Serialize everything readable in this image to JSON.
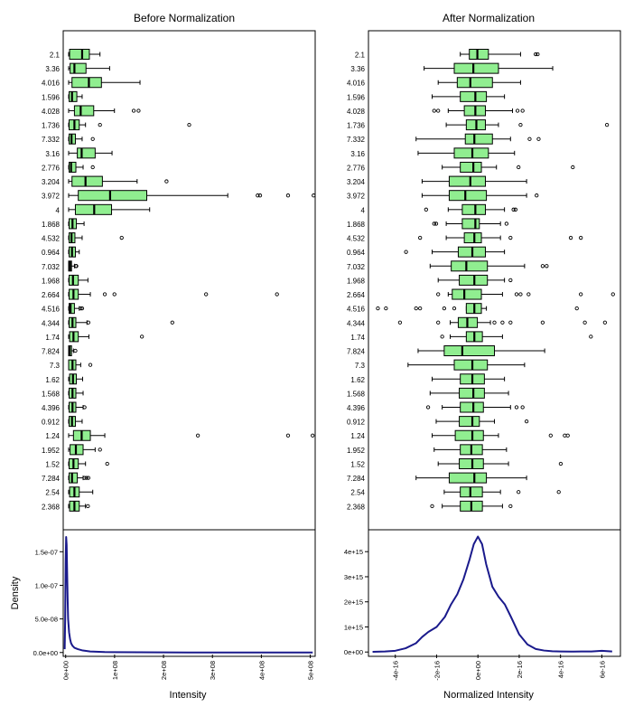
{
  "colors": {
    "box_fill": "#90ee90",
    "box_stroke": "#000000",
    "density_line": "#1a1a8c",
    "frame": "#000000",
    "label": "#000000"
  },
  "chart_data": [
    {
      "type": "boxplot",
      "title": "Before Normalization",
      "xlabel": "",
      "ylabel": "",
      "xlim": [
        0,
        500000000
      ],
      "categories": [
        "2.1",
        "3.36",
        "4.016",
        "1.596",
        "4.028",
        "1.736",
        "7.332",
        "3.16",
        "2.776",
        "3.204",
        "3.972",
        "4",
        "1.868",
        "4.532",
        "0.964",
        "7.032",
        "1.968",
        "2.664",
        "4.516",
        "4.344",
        "1.74",
        "7.824",
        "7.3",
        "1.62",
        "1.568",
        "4.396",
        "0.912",
        "1.24",
        "1.952",
        "1.52",
        "7.284",
        "2.54",
        "2.368"
      ],
      "boxes": [
        {
          "wlo": 0,
          "q1": 2000000,
          "med": 28000000,
          "q3": 43000000,
          "whi": 65000000,
          "outliers": []
        },
        {
          "wlo": 0,
          "q1": 3000000,
          "med": 12000000,
          "q3": 36000000,
          "whi": 85000000,
          "outliers": []
        },
        {
          "wlo": 0,
          "q1": 7000000,
          "med": 42000000,
          "q3": 68000000,
          "whi": 148000000,
          "outliers": []
        },
        {
          "wlo": 0,
          "q1": 1000000,
          "med": 7000000,
          "q3": 17000000,
          "whi": 28000000,
          "outliers": []
        },
        {
          "wlo": 0,
          "q1": 12000000,
          "med": 25000000,
          "q3": 52000000,
          "whi": 95000000,
          "outliers": [
            135000000,
            145000000
          ]
        },
        {
          "wlo": 0,
          "q1": 1000000,
          "med": 12000000,
          "q3": 22000000,
          "whi": 35000000,
          "outliers": [
            65000000,
            250000000
          ]
        },
        {
          "wlo": 0,
          "q1": 1000000,
          "med": 6000000,
          "q3": 14000000,
          "whi": 28000000,
          "outliers": [
            50000000
          ]
        },
        {
          "wlo": 0,
          "q1": 18000000,
          "med": 27000000,
          "q3": 55000000,
          "whi": 90000000,
          "outliers": []
        },
        {
          "wlo": 0,
          "q1": 1000000,
          "med": 5000000,
          "q3": 15000000,
          "whi": 30000000,
          "outliers": [
            50000000
          ]
        },
        {
          "wlo": 0,
          "q1": 7000000,
          "med": 35000000,
          "q3": 70000000,
          "whi": 142000000,
          "outliers": [
            203000000
          ]
        },
        {
          "wlo": 0,
          "q1": 20000000,
          "med": 86000000,
          "q3": 162000000,
          "whi": 330000000,
          "outliers": [
            392000000,
            397000000,
            455000000,
            508000000
          ]
        },
        {
          "wlo": 0,
          "q1": 14000000,
          "med": 53000000,
          "q3": 89000000,
          "whi": 168000000,
          "outliers": []
        },
        {
          "wlo": 0,
          "q1": 1000000,
          "med": 8000000,
          "q3": 16000000,
          "whi": 32000000,
          "outliers": []
        },
        {
          "wlo": 0,
          "q1": 1000000,
          "med": 6000000,
          "q3": 13000000,
          "whi": 28000000,
          "outliers": [
            110000000
          ]
        },
        {
          "wlo": 0,
          "q1": 1000000,
          "med": 7000000,
          "q3": 14000000,
          "whi": 22000000,
          "outliers": []
        },
        {
          "wlo": 0,
          "q1": 0,
          "med": 3000000,
          "q3": 6000000,
          "whi": 12000000,
          "outliers": [
            15000000,
            16000000
          ]
        },
        {
          "wlo": 0,
          "q1": 1000000,
          "med": 9000000,
          "q3": 20000000,
          "whi": 40000000,
          "outliers": []
        },
        {
          "wlo": 0,
          "q1": 1000000,
          "med": 10000000,
          "q3": 20000000,
          "whi": 45000000,
          "outliers": [
            75000000,
            95000000,
            285000000,
            432000000
          ]
        },
        {
          "wlo": 0,
          "q1": 1000000,
          "med": 4000000,
          "q3": 12000000,
          "whi": 22000000,
          "outliers": [
            25000000,
            28000000
          ]
        },
        {
          "wlo": 0,
          "q1": 1000000,
          "med": 8000000,
          "q3": 15000000,
          "whi": 38000000,
          "outliers": [
            41000000,
            215000000
          ]
        },
        {
          "wlo": 0,
          "q1": 2000000,
          "med": 10000000,
          "q3": 20000000,
          "whi": 42000000,
          "outliers": [
            152000000
          ]
        },
        {
          "wlo": 0,
          "q1": 0,
          "med": 2000000,
          "q3": 6000000,
          "whi": 10000000,
          "outliers": [
            14000000
          ]
        },
        {
          "wlo": 0,
          "q1": 0,
          "med": 8000000,
          "q3": 15000000,
          "whi": 25000000,
          "outliers": [
            45000000
          ]
        },
        {
          "wlo": 0,
          "q1": 2000000,
          "med": 9000000,
          "q3": 16000000,
          "whi": 29000000,
          "outliers": []
        },
        {
          "wlo": 0,
          "q1": 1000000,
          "med": 8000000,
          "q3": 15000000,
          "whi": 30000000,
          "outliers": []
        },
        {
          "wlo": 0,
          "q1": 1000000,
          "med": 8000000,
          "q3": 15000000,
          "whi": 30000000,
          "outliers": [
            33000000
          ]
        },
        {
          "wlo": 0,
          "q1": 1000000,
          "med": 7000000,
          "q3": 14000000,
          "whi": 28000000,
          "outliers": []
        },
        {
          "wlo": 0,
          "q1": 10000000,
          "med": 27000000,
          "q3": 45000000,
          "whi": 75000000,
          "outliers": [
            268000000,
            455000000,
            506000000
          ]
        },
        {
          "wlo": 0,
          "q1": 3000000,
          "med": 15000000,
          "q3": 30000000,
          "whi": 55000000,
          "outliers": [
            65000000
          ]
        },
        {
          "wlo": 0,
          "q1": 1000000,
          "med": 10000000,
          "q3": 20000000,
          "whi": 35000000,
          "outliers": [
            80000000
          ]
        },
        {
          "wlo": 0,
          "q1": 1000000,
          "med": 7000000,
          "q3": 18000000,
          "whi": 30000000,
          "outliers": [
            33000000,
            37000000,
            41000000
          ]
        },
        {
          "wlo": 0,
          "q1": 2000000,
          "med": 12000000,
          "q3": 22000000,
          "whi": 50000000,
          "outliers": []
        },
        {
          "wlo": 0,
          "q1": 2000000,
          "med": 12000000,
          "q3": 22000000,
          "whi": 35000000,
          "outliers": [
            40000000
          ]
        }
      ]
    },
    {
      "type": "boxplot",
      "title": "After Normalization",
      "xlabel": "",
      "ylabel": "",
      "xlim": [
        -5.2e-16,
        6.8e-16
      ],
      "categories": [
        "2.1",
        "3.36",
        "4.016",
        "1.596",
        "4.028",
        "1.736",
        "7.332",
        "3.16",
        "2.776",
        "3.204",
        "3.972",
        "4",
        "1.868",
        "4.532",
        "0.964",
        "7.032",
        "1.968",
        "2.664",
        "4.516",
        "4.344",
        "1.74",
        "7.824",
        "7.3",
        "1.62",
        "1.568",
        "4.396",
        "0.912",
        "1.24",
        "1.952",
        "1.52",
        "7.284",
        "2.54",
        "2.368"
      ],
      "boxes": [
        {
          "wlo": -9e-17,
          "q1": -4.5e-17,
          "med": -5e-18,
          "q3": 5e-17,
          "whi": 2.1e-16,
          "outliers": [
            2.85e-16,
            2.95e-16
          ]
        },
        {
          "wlo": -2.7e-16,
          "q1": -1.2e-16,
          "med": -2.5e-17,
          "q3": 1e-16,
          "whi": 3.7e-16,
          "outliers": []
        },
        {
          "wlo": -2e-16,
          "q1": -1.05e-16,
          "med": -4e-17,
          "q3": 7e-17,
          "whi": 2.1e-16,
          "outliers": []
        },
        {
          "wlo": -2.3e-16,
          "q1": -9e-17,
          "med": -1.5e-17,
          "q3": 4e-17,
          "whi": 1.3e-16,
          "outliers": []
        },
        {
          "wlo": -1.5e-16,
          "q1": -7e-17,
          "med": -1.5e-17,
          "q3": 3.5e-17,
          "whi": 1.7e-16,
          "outliers": [
            -2.2e-16,
            -2e-16,
            1.95e-16,
            2.2e-16
          ]
        },
        {
          "wlo": -1.6e-16,
          "q1": -6e-17,
          "med": -1e-17,
          "q3": 3.5e-17,
          "whi": 1e-16,
          "outliers": [
            2.1e-16,
            6.4e-16
          ]
        },
        {
          "wlo": -3.1e-16,
          "q1": -6.5e-17,
          "med": -2e-17,
          "q3": 7e-17,
          "whi": 1.6e-16,
          "outliers": [
            2.55e-16,
            3e-16
          ]
        },
        {
          "wlo": -3e-16,
          "q1": -1.2e-16,
          "med": -3e-17,
          "q3": 5e-17,
          "whi": 1.8e-16,
          "outliers": []
        },
        {
          "wlo": -1.8e-16,
          "q1": -9e-17,
          "med": -2.5e-17,
          "q3": 1.5e-17,
          "whi": 9e-17,
          "outliers": [
            2e-16,
            4.7e-16
          ]
        },
        {
          "wlo": -2.8e-16,
          "q1": -1.45e-16,
          "med": -4e-17,
          "q3": 3.5e-17,
          "whi": 2.4e-16,
          "outliers": []
        },
        {
          "wlo": -2.8e-16,
          "q1": -1.45e-16,
          "med": -6.5e-17,
          "q3": 4e-17,
          "whi": 2.4e-16,
          "outliers": [
            2.9e-16
          ]
        },
        {
          "wlo": -1.5e-16,
          "q1": -8e-17,
          "med": -1.5e-17,
          "q3": 3.5e-17,
          "whi": 1.3e-16,
          "outliers": [
            -2.6e-16,
            1.75e-16,
            1.85e-16
          ]
        },
        {
          "wlo": -1.6e-16,
          "q1": -8e-17,
          "med": -1.5e-17,
          "q3": 5e-18,
          "whi": 1.1e-16,
          "outliers": [
            -2.2e-16,
            -2.1e-16,
            1.4e-16
          ]
        },
        {
          "wlo": -1.6e-16,
          "q1": -7e-17,
          "med": -2e-17,
          "q3": 1.5e-17,
          "whi": 1.1e-16,
          "outliers": [
            -2.9e-16,
            1.6e-16,
            4.6e-16,
            5.1e-16
          ]
        },
        {
          "wlo": -2.3e-16,
          "q1": -1e-16,
          "med": -3e-17,
          "q3": 3.5e-17,
          "whi": 1.3e-16,
          "outliers": [
            -3.6e-16
          ]
        },
        {
          "wlo": -2.4e-16,
          "q1": -1.35e-16,
          "med": -6e-17,
          "q3": 4.5e-17,
          "whi": 2.3e-16,
          "outliers": [
            3.2e-16,
            3.4e-16
          ]
        },
        {
          "wlo": -2e-16,
          "q1": -9.5e-17,
          "med": -2e-17,
          "q3": 4.5e-17,
          "whi": 1.3e-16,
          "outliers": [
            1.6e-16
          ]
        },
        {
          "wlo": -1.5e-16,
          "q1": -1.3e-16,
          "med": -7e-17,
          "q3": 1.5e-17,
          "whi": 1.2e-16,
          "outliers": [
            -2e-16,
            1.9e-16,
            2.1e-16,
            2.5e-16,
            5.1e-16,
            6.7e-16
          ]
        },
        {
          "wlo": -6e-17,
          "q1": -6e-17,
          "med": -2e-17,
          "q3": 1.5e-17,
          "whi": 4e-17,
          "outliers": [
            -5e-16,
            -4.6e-16,
            -3.1e-16,
            -2.9e-16,
            -1.7e-16,
            -1.2e-16,
            4.9e-16
          ]
        },
        {
          "wlo": -1.4e-16,
          "q1": -1e-16,
          "med": -5.5e-17,
          "q3": -5e-18,
          "whi": 6e-17,
          "outliers": [
            -3.9e-16,
            -2e-16,
            8e-17,
            1.2e-16,
            1.6e-16,
            3.2e-16,
            5.3e-16,
            6.3e-16
          ]
        },
        {
          "wlo": -1.4e-16,
          "q1": -6e-17,
          "med": -2e-17,
          "q3": 2e-17,
          "whi": 1.2e-16,
          "outliers": [
            -1.8e-16,
            5.6e-16
          ]
        },
        {
          "wlo": -3e-16,
          "q1": -1.7e-16,
          "med": -8e-17,
          "q3": 8e-17,
          "whi": 3.3e-16,
          "outliers": []
        },
        {
          "wlo": -3.5e-16,
          "q1": -1.2e-16,
          "med": -3e-17,
          "q3": 4.5e-17,
          "whi": 2.3e-16,
          "outliers": []
        },
        {
          "wlo": -2.3e-16,
          "q1": -9e-17,
          "med": -3e-17,
          "q3": 3e-17,
          "whi": 1.3e-16,
          "outliers": []
        },
        {
          "wlo": -2.4e-16,
          "q1": -9.5e-17,
          "med": -2.5e-17,
          "q3": 3e-17,
          "whi": 1.5e-16,
          "outliers": []
        },
        {
          "wlo": -1.8e-16,
          "q1": -9e-17,
          "med": -2.5e-17,
          "q3": 2.5e-17,
          "whi": 1.6e-16,
          "outliers": [
            -2.5e-16,
            1.9e-16,
            2.2e-16
          ]
        },
        {
          "wlo": -2.1e-16,
          "q1": -9.5e-17,
          "med": -3e-17,
          "q3": 5e-18,
          "whi": 8e-17,
          "outliers": [
            2.4e-16
          ]
        },
        {
          "wlo": -2.3e-16,
          "q1": -1.15e-16,
          "med": -3e-17,
          "q3": 2.5e-17,
          "whi": 1e-16,
          "outliers": [
            3.6e-16,
            4.3e-16,
            4.45e-16
          ]
        },
        {
          "wlo": -2.2e-16,
          "q1": -9e-17,
          "med": -3.5e-17,
          "q3": 2e-17,
          "whi": 1.4e-16,
          "outliers": []
        },
        {
          "wlo": -2e-16,
          "q1": -9.5e-17,
          "med": -3e-17,
          "q3": 2.5e-17,
          "whi": 1.5e-16,
          "outliers": [
            4.1e-16
          ]
        },
        {
          "wlo": -3.1e-16,
          "q1": -1.45e-16,
          "med": -2e-17,
          "q3": 4e-17,
          "whi": 2.4e-16,
          "outliers": []
        },
        {
          "wlo": -1.7e-16,
          "q1": -9e-17,
          "med": -4e-17,
          "q3": 2e-17,
          "whi": 1.1e-16,
          "outliers": [
            2e-16,
            4e-16
          ]
        },
        {
          "wlo": -1.8e-16,
          "q1": -9e-17,
          "med": -3.5e-17,
          "q3": 2e-17,
          "whi": 1.2e-16,
          "outliers": [
            -2.3e-16,
            1.6e-16
          ]
        }
      ]
    },
    {
      "type": "line",
      "title": "",
      "xlabel": "Intensity",
      "ylabel": "Density",
      "xlim": [
        -5000000,
        510000000
      ],
      "ylim": [
        -3e-09,
        1.8e-07
      ],
      "xticks": [
        0,
        100000000,
        200000000,
        300000000,
        400000000,
        500000000
      ],
      "xtick_labels": [
        "0e+00",
        "1e+08",
        "2e+08",
        "3e+08",
        "4e+08",
        "5e+08"
      ],
      "yticks": [
        0,
        5e-08,
        1e-07,
        1.5e-07
      ],
      "ytick_labels": [
        "0.0e+00",
        "5.0e-08",
        "1.0e-07",
        "1.5e-07"
      ],
      "x": [
        -2000000,
        -1000000,
        0,
        1000000,
        2000000,
        3000000,
        4000000,
        5000000,
        7000000,
        9000000,
        11000000,
        14000000,
        18000000,
        25000000,
        35000000,
        50000000,
        80000000,
        150000000,
        250000000,
        350000000,
        450000000,
        505000000
      ],
      "y": [
        5e-09,
        5e-08,
        1.35e-07,
        1.72e-07,
        1.6e-07,
        1.2e-07,
        8e-08,
        5e-08,
        3e-08,
        2e-08,
        1.4e-08,
        1e-08,
        7e-09,
        5e-09,
        3e-09,
        1.5e-09,
        7e-10,
        3e-10,
        1e-10,
        5e-11,
        2e-11,
        1e-11
      ]
    },
    {
      "type": "line",
      "title": "",
      "xlabel": "Normalized Intensity",
      "ylabel": "",
      "xlim": [
        -5.3e-16,
        6.9e-16
      ],
      "ylim": [
        -100000000000000.0,
        4800000000000000.0
      ],
      "xticks": [
        -4e-16,
        -2e-16,
        0,
        2e-16,
        4e-16,
        6e-16
      ],
      "xtick_labels": [
        "-4e-16",
        "-2e-16",
        "0e+00",
        "2e-16",
        "4e-16",
        "6e-16"
      ],
      "yticks": [
        0,
        1000000000000000.0,
        2000000000000000.0,
        3000000000000000.0,
        4000000000000000.0
      ],
      "ytick_labels": [
        "0e+00",
        "1e+15",
        "2e+15",
        "3e+15",
        "4e+15"
      ],
      "x": [
        -5.1e-16,
        -4.5e-16,
        -4e-16,
        -3.5e-16,
        -3e-16,
        -2.7e-16,
        -2.4e-16,
        -2e-16,
        -1.6e-16,
        -1.3e-16,
        -1e-16,
        -7e-17,
        -4e-17,
        -2e-17,
        0,
        2e-17,
        4e-17,
        7e-17,
        1e-16,
        1.3e-16,
        1.6e-16,
        2e-16,
        2.4e-16,
        2.8e-16,
        3.2e-16,
        3.6e-16,
        4e-16,
        4.5e-16,
        5e-16,
        5.5e-16,
        6e-16,
        6.5e-16
      ],
      "y": [
        10000000000000.0,
        20000000000000.0,
        50000000000000.0,
        150000000000000.0,
        350000000000000.0,
        600000000000000.0,
        800000000000000.0,
        1000000000000000.0,
        1400000000000000.0,
        1900000000000000.0,
        2300000000000000.0,
        2900000000000000.0,
        3700000000000000.0,
        4300000000000000.0,
        4600000000000000.0,
        4300000000000000.0,
        3500000000000000.0,
        2600000000000000.0,
        2200000000000000.0,
        1900000000000000.0,
        1400000000000000.0,
        700000000000000.0,
        300000000000000.0,
        120000000000000.0,
        60000000000000.0,
        30000000000000.0,
        20000000000000.0,
        15000000000000.0,
        20000000000000.0,
        20000000000000.0,
        50000000000000.0,
        20000000000000.0
      ]
    }
  ]
}
